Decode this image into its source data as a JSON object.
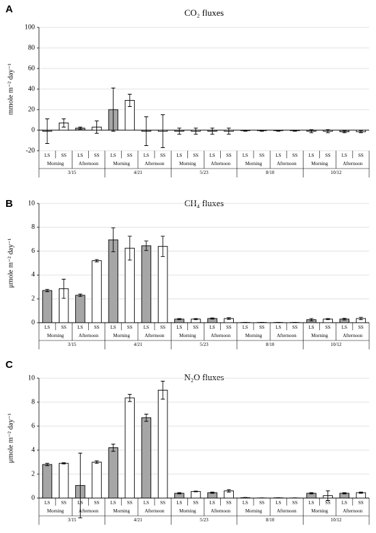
{
  "chart_data": [
    {
      "type": "bar",
      "panel_label": "A",
      "title": "CO₂ fluxes",
      "y_label": "mmole m⁻² day⁻¹",
      "categories": [
        "LS",
        "SS",
        "LS",
        "SS",
        "LS",
        "SS",
        "LS",
        "SS",
        "LS",
        "SS",
        "LS",
        "SS",
        "LS",
        "SS",
        "LS",
        "SS",
        "LS",
        "SS",
        "LS",
        "SS"
      ],
      "time_groups": [
        "Morning",
        "Afternoon",
        "Morning",
        "Afternoon",
        "Morning",
        "Afternoon",
        "Morning",
        "Afternoon",
        "Morning",
        "Afternoon"
      ],
      "date_groups": [
        "3/15",
        "4/21",
        "5/23",
        "8/10",
        "10/12"
      ],
      "values": [
        -1,
        7,
        2,
        3,
        20,
        29,
        -1,
        -1,
        -1,
        -1,
        -1,
        -1,
        -0.5,
        -0.5,
        -0.5,
        -0.5,
        -1,
        -1,
        -1.5,
        -1.5
      ],
      "errors": [
        12,
        4,
        1,
        6,
        21,
        6,
        14,
        16,
        3,
        3,
        3,
        3,
        0.5,
        0.5,
        0.5,
        0.5,
        1.5,
        1.5,
        1,
        1
      ],
      "bar_colors": [
        "#a6a6a6",
        "#ffffff"
      ],
      "ylim": [
        -20,
        100
      ],
      "yticks": [
        -20,
        0,
        20,
        40,
        60,
        80,
        100
      ],
      "grid": true
    },
    {
      "type": "bar",
      "panel_label": "B",
      "title": "CH₄ fluxes",
      "y_label": "μmole m⁻² day⁻¹",
      "categories": [
        "LS",
        "SS",
        "LS",
        "SS",
        "LS",
        "SS",
        "LS",
        "SS",
        "LS",
        "SS",
        "LS",
        "SS",
        "LS",
        "SS",
        "LS",
        "SS",
        "LS",
        "SS",
        "LS",
        "SS"
      ],
      "time_groups": [
        "Morning",
        "Afternoon",
        "Morning",
        "Afternoon",
        "Morning",
        "Afternoon",
        "Morning",
        "Afternoon",
        "Morning",
        "Afternoon"
      ],
      "date_groups": [
        "3/15",
        "4/21",
        "5/23",
        "8/10",
        "10/12"
      ],
      "values": [
        2.7,
        2.85,
        2.3,
        5.2,
        6.95,
        6.25,
        6.45,
        6.4,
        0.3,
        0.3,
        0.35,
        0.35,
        0.02,
        0.02,
        0.02,
        0.02,
        0.25,
        0.3,
        0.3,
        0.35
      ],
      "errors": [
        0.1,
        0.8,
        0.1,
        0.1,
        1.0,
        1.0,
        0.4,
        0.85,
        0.05,
        0.05,
        0.05,
        0.07,
        0.01,
        0.01,
        0.01,
        0.01,
        0.1,
        0.05,
        0.07,
        0.1
      ],
      "bar_colors": [
        "#a6a6a6",
        "#ffffff"
      ],
      "ylim": [
        0,
        10
      ],
      "yticks": [
        0,
        2,
        4,
        6,
        8,
        10
      ],
      "grid": true
    },
    {
      "type": "bar",
      "panel_label": "C",
      "title": "N₂O fluxes",
      "y_label": "μmole m⁻² day⁻¹",
      "categories": [
        "LS",
        "SS",
        "LS",
        "SS",
        "LS",
        "SS",
        "LS",
        "SS",
        "LS",
        "SS",
        "LS",
        "SS",
        "LS",
        "SS",
        "LS",
        "SS",
        "LS",
        "SS",
        "LS",
        "SS"
      ],
      "time_groups": [
        "Morning",
        "Afternoon",
        "Morning",
        "Afternoon",
        "Morning",
        "Afternoon",
        "Morning",
        "Afternoon",
        "Morning",
        "Afternoon"
      ],
      "date_groups": [
        "3/15",
        "4/21",
        "5/23",
        "8/10",
        "10/12"
      ],
      "values": [
        2.8,
        2.9,
        1.05,
        3.0,
        4.2,
        8.35,
        6.7,
        9.0,
        0.4,
        0.55,
        0.45,
        0.6,
        0.03,
        0.01,
        0.02,
        0.01,
        0.4,
        0.2,
        0.4,
        0.45
      ],
      "errors": [
        0.1,
        0.05,
        2.7,
        0.1,
        0.3,
        0.3,
        0.3,
        0.75,
        0.05,
        0.03,
        0.05,
        0.1,
        0.02,
        0.01,
        0.01,
        0.01,
        0.05,
        0.4,
        0.05,
        0.05
      ],
      "bar_colors": [
        "#a6a6a6",
        "#ffffff"
      ],
      "ylim": [
        0,
        10
      ],
      "yticks": [
        0,
        2,
        4,
        6,
        8,
        10
      ],
      "grid": true
    }
  ]
}
